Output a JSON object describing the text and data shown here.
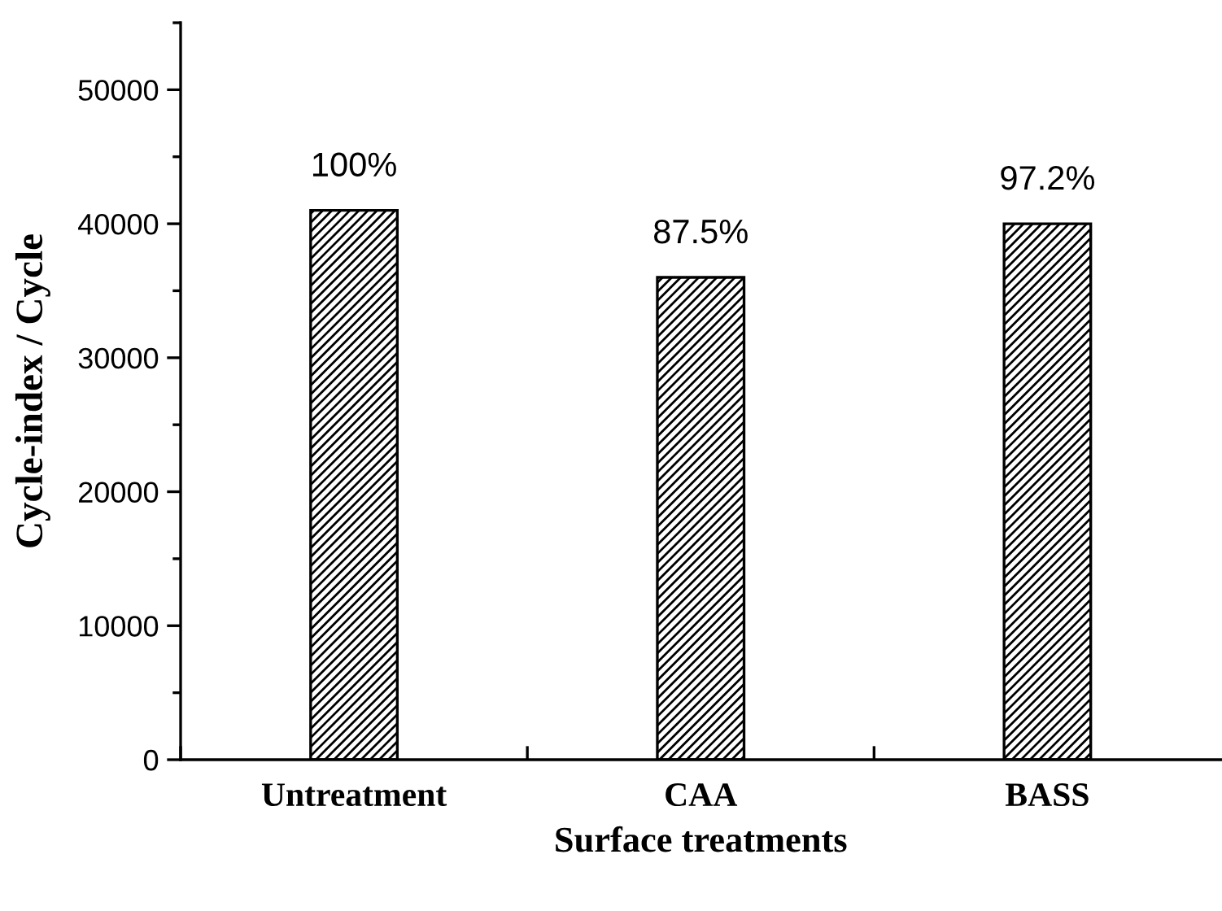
{
  "chart_data": {
    "type": "bar",
    "xlabel": "Surface treatments",
    "ylabel": "Cycle-index / Cycle",
    "categories": [
      "Untreatment",
      "CAA",
      "BASS"
    ],
    "values": [
      41000,
      36000,
      40000
    ],
    "annotations": [
      {
        "text": "100%",
        "x": "Untreatment",
        "y": 41000
      },
      {
        "text": "87.5%",
        "x": "CAA",
        "y": 36000
      },
      {
        "text": "97.2%",
        "x": "BASS",
        "y": 40000
      }
    ],
    "color": "#000000",
    "ylim": [
      0,
      55000
    ],
    "yticks": [
      0,
      {
        "value": 5000,
        "label": null
      },
      10000,
      {
        "value": 15000,
        "label": null
      },
      20000,
      {
        "value": 25000,
        "label": null
      },
      30000,
      {
        "value": 35000,
        "label": null
      },
      40000,
      {
        "value": 45000,
        "label": null
      },
      50000,
      {
        "value": 55000,
        "label": null
      }
    ],
    "grid": false,
    "legend": false
  }
}
